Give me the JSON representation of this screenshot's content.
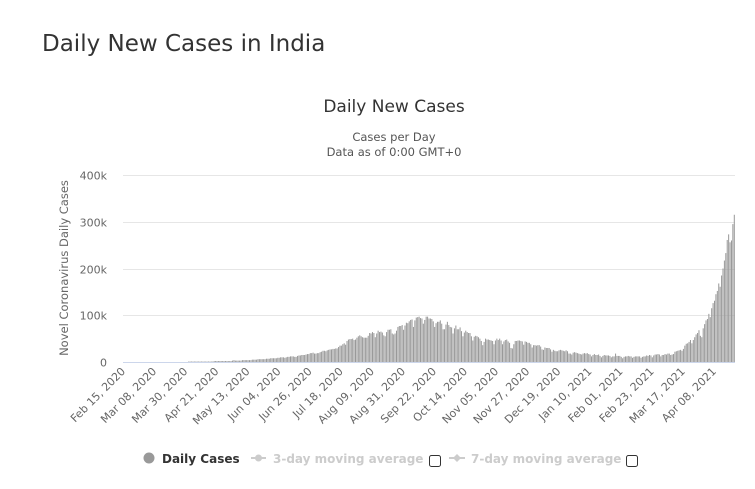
{
  "page": {
    "title": "Daily New Cases in India"
  },
  "chart_data": {
    "type": "bar",
    "title": "Daily New Cases",
    "subtitle_lines": [
      "Cases per Day",
      "Data as of 0:00 GMT+0"
    ],
    "ylabel": "Novel Coronavirus Daily Cases",
    "xlabel": "",
    "ylim": [
      0,
      400000
    ],
    "y_ticks": [
      0,
      100000,
      200000,
      300000,
      400000
    ],
    "y_tick_labels": [
      "0",
      "100k",
      "200k",
      "300k",
      "400k"
    ],
    "x_start": "Feb 15, 2020",
    "x_end": "Apr 22, 2021",
    "x_tick_interval_days": 22,
    "x_tick_labels": [
      "Feb 15, 2020",
      "Mar 08, 2020",
      "Mar 30, 2020",
      "Apr 21, 2020",
      "May 13, 2020",
      "Jun 04, 2020",
      "Jun 26, 2020",
      "Jul 18, 2020",
      "Aug 09, 2020",
      "Aug 31, 2020",
      "Sep 22, 2020",
      "Oct 14, 2020",
      "Nov 05, 2020",
      "Nov 27, 2020",
      "Dec 19, 2020",
      "Jan 10, 2021",
      "Feb 01, 2021",
      "Feb 23, 2021",
      "Mar 17, 2021",
      "Apr 08, 2021"
    ],
    "grid": true,
    "value_unit": "thousands of cases per day",
    "values_k": [
      0,
      0,
      0,
      0,
      0,
      0,
      0,
      0,
      0,
      0,
      0,
      0,
      0,
      0,
      0,
      0,
      0,
      0,
      0,
      0,
      0,
      0,
      0,
      0,
      0,
      0,
      0,
      0,
      0,
      0,
      0,
      0,
      0,
      0,
      0,
      0,
      0,
      0,
      0,
      0,
      0,
      0,
      0,
      0,
      0,
      0,
      1,
      1,
      1,
      1,
      1,
      1,
      1,
      1,
      1,
      1,
      1,
      1,
      1,
      1,
      1,
      1,
      1,
      1,
      2,
      2,
      2,
      2,
      2,
      2,
      2,
      2,
      2,
      2,
      2,
      2,
      2,
      3,
      4,
      3,
      3,
      3,
      3,
      3,
      4,
      4,
      4,
      4,
      4,
      4,
      4,
      5,
      5,
      5,
      5,
      6,
      6,
      6,
      6,
      6,
      6,
      7,
      7,
      7,
      8,
      8,
      8,
      8,
      8,
      9,
      9,
      10,
      10,
      10,
      9,
      10,
      11,
      11,
      12,
      12,
      12,
      11,
      11,
      13,
      14,
      14,
      15,
      15,
      15,
      16,
      17,
      17,
      19,
      19,
      20,
      18,
      18,
      19,
      19,
      21,
      22,
      24,
      24,
      23,
      25,
      26,
      27,
      27,
      28,
      28,
      29,
      29,
      32,
      35,
      35,
      38,
      40,
      37,
      45,
      48,
      49,
      49,
      50,
      47,
      48,
      52,
      55,
      57,
      55,
      53,
      52,
      52,
      52,
      56,
      62,
      61,
      64,
      62,
      53,
      61,
      67,
      64,
      65,
      63,
      57,
      55,
      64,
      69,
      69,
      70,
      61,
      59,
      61,
      67,
      75,
      77,
      77,
      79,
      69,
      78,
      84,
      83,
      87,
      90,
      91,
      75,
      89,
      95,
      96,
      97,
      94,
      93,
      82,
      90,
      97,
      97,
      93,
      93,
      92,
      87,
      75,
      83,
      86,
      86,
      89,
      82,
      70,
      70,
      80,
      86,
      79,
      75,
      74,
      61,
      72,
      78,
      70,
      70,
      74,
      66,
      55,
      63,
      67,
      64,
      62,
      62,
      55,
      46,
      54,
      56,
      55,
      53,
      50,
      45,
      36,
      43,
      50,
      48,
      48,
      47,
      46,
      45,
      38,
      46,
      50,
      47,
      50,
      46,
      38,
      44,
      47,
      48,
      44,
      41,
      30,
      29,
      38,
      45,
      45,
      46,
      46,
      45,
      44,
      37,
      44,
      43,
      41,
      41,
      38,
      31,
      36,
      36,
      35,
      36,
      36,
      33,
      27,
      26,
      31,
      30,
      30,
      30,
      27,
      22,
      26,
      24,
      23,
      23,
      25,
      26,
      25,
      24,
      23,
      25,
      23,
      18,
      18,
      16,
      20,
      21,
      20,
      19,
      18,
      17,
      16,
      18,
      19,
      18,
      19,
      17,
      16,
      12,
      15,
      17,
      15,
      15,
      16,
      13,
      10,
      13,
      15,
      14,
      14,
      14,
      13,
      10,
      12,
      12,
      18,
      13,
      13,
      13,
      11,
      8,
      11,
      12,
      12,
      13,
      12,
      12,
      9,
      11,
      12,
      12,
      12,
      12,
      9,
      11,
      12,
      12,
      14,
      13,
      15,
      14,
      10,
      14,
      16,
      16,
      17,
      16,
      12,
      15,
      15,
      17,
      16,
      18,
      18,
      15,
      16,
      17,
      22,
      23,
      24,
      25,
      26,
      24,
      28,
      35,
      39,
      40,
      43,
      47,
      40,
      47,
      53,
      59,
      62,
      68,
      56,
      53,
      72,
      81,
      89,
      92,
      103,
      96,
      115,
      126,
      131,
      145,
      152,
      168,
      161,
      185,
      200,
      217,
      233,
      261,
      273,
      256,
      260,
      295,
      315
    ],
    "legend": {
      "placement": "bottom-center",
      "items": [
        {
          "label": "Daily Cases",
          "enabled": true
        },
        {
          "label": "3-day moving average",
          "enabled": false
        },
        {
          "label": "7-day moving average",
          "enabled": false
        }
      ]
    },
    "colors": {
      "bar": "#999999",
      "grid": "#e6e6e6",
      "axis": "#ccd6eb",
      "legend_disabled": "#cccccc"
    }
  }
}
